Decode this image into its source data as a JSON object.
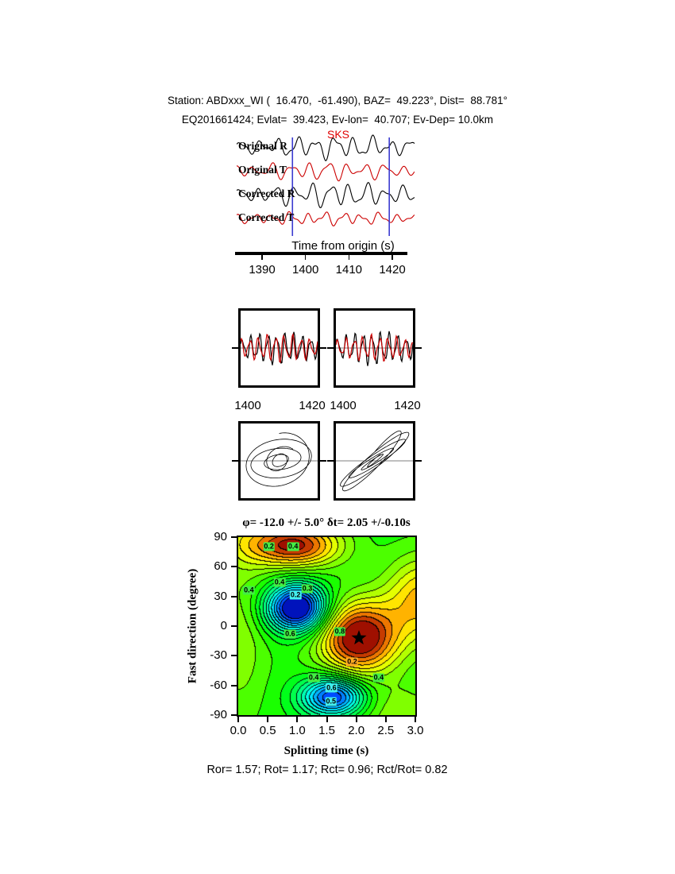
{
  "header": {
    "line1": "Station: ABDxxx_WI (  16.470,  -61.490), BAZ=  49.223°, Dist=  88.781°",
    "line2": "EQ201661424; Evlat=  39.423, Ev-lon=  40.707; Ev-Dep= 10.0km"
  },
  "footer": {
    "text": "Ror= 1.57; Rot= 1.17; Rct= 0.96; Rct/Rot= 0.82"
  },
  "chart_data": [
    {
      "type": "line",
      "name": "seismogram-traces",
      "xlabel": "Time from origin (s)",
      "xlim": [
        1384,
        1425
      ],
      "xticks": [
        1390,
        1400,
        1410,
        1420
      ],
      "phase_label": "SKS",
      "window": [
        1397,
        1419.3
      ],
      "window_color": "#3a3ad0",
      "traces": [
        {
          "label": "Original R",
          "color": "#000000",
          "components": [
            [
              10,
              9.5,
              0.0
            ],
            [
              5,
              17,
              1.3
            ],
            [
              3,
              5,
              2.1
            ]
          ],
          "env": [
            0.55,
            0.33,
            0.3
          ]
        },
        {
          "label": "Original T",
          "color": "#cc0000",
          "components": [
            [
              8,
              9.5,
              2.2
            ],
            [
              4,
              15,
              0.7
            ],
            [
              2.5,
              6,
              1.0
            ]
          ],
          "env": [
            0.5,
            0.35,
            0.3
          ]
        },
        {
          "label": "Corrected R",
          "color": "#000000",
          "components": [
            [
              11,
              9.8,
              0.4
            ],
            [
              5,
              16,
              2.0
            ],
            [
              3,
              5.5,
              0.9
            ]
          ],
          "env": [
            0.55,
            0.33,
            0.3
          ]
        },
        {
          "label": "Corrected T",
          "color": "#cc0000",
          "components": [
            [
              5.5,
              10,
              1.5
            ],
            [
              3,
              18,
              0.2
            ],
            [
              2,
              6,
              2.6
            ]
          ],
          "env": [
            0.5,
            0.4,
            0.35
          ]
        }
      ]
    },
    {
      "type": "line",
      "name": "windowed-pair-original",
      "xticks": [
        1400,
        1420
      ],
      "traces": [
        {
          "color": "#000000",
          "components": [
            [
              16,
              9,
              0.2
            ],
            [
              6,
              16,
              1.1
            ]
          ],
          "env": [
            0.5,
            0.42,
            0.25
          ]
        },
        {
          "color": "#cc0000",
          "components": [
            [
              14,
              9,
              1.05
            ],
            [
              5,
              15,
              0.3
            ]
          ],
          "env": [
            0.5,
            0.42,
            0.25
          ]
        }
      ]
    },
    {
      "type": "line",
      "name": "windowed-pair-corrected",
      "xticks": [
        1400,
        1420
      ],
      "traces": [
        {
          "color": "#000000",
          "components": [
            [
              17,
              9,
              0.2
            ],
            [
              6,
              16,
              1.0
            ]
          ],
          "env": [
            0.5,
            0.42,
            0.25
          ]
        },
        {
          "color": "#cc0000",
          "components": [
            [
              13,
              9.15,
              0.32
            ],
            [
              5,
              15.5,
              0.5
            ]
          ],
          "env": [
            0.5,
            0.42,
            0.25
          ]
        }
      ]
    },
    {
      "type": "scatter",
      "name": "particle-motion-original",
      "curve": {
        "ax": 44,
        "ay": 38,
        "phase": 1.35,
        "b0": 0.6,
        "b1": 0.4,
        "m1": 0.17,
        "c1": 0.6,
        "m2": 0.13,
        "c2": 1.9,
        "n": 540,
        "dtheta": 0.06
      }
    },
    {
      "type": "scatter",
      "name": "particle-motion-corrected",
      "curve": {
        "ax": 46,
        "ay": 40,
        "phase": 0.3,
        "b0": 0.6,
        "b1": 0.4,
        "m1": 0.15,
        "c1": 0.2,
        "m2": 0.12,
        "c2": 1.2,
        "n": 540,
        "dtheta": 0.06
      }
    },
    {
      "type": "heatmap",
      "name": "splitting-error-surface",
      "title": "φ= -12.0 +/- 5.0° δt= 2.05 +/-0.10s",
      "xlabel": "Splitting time (s)",
      "ylabel": "Fast direction (degree)",
      "xlim": [
        0,
        3
      ],
      "ylim": [
        -90,
        90
      ],
      "xticks": [
        "0.0",
        "0.5",
        "1.0",
        "1.5",
        "2.0",
        "2.5",
        "3.0"
      ],
      "yticks": [
        90,
        60,
        30,
        0,
        -30,
        -60,
        -90
      ],
      "best_solution": {
        "phi": -12.0,
        "phi_err": 5.0,
        "dt": 2.05,
        "dt_err": 0.1
      },
      "n_levels": 20,
      "base": 0.52,
      "gaussians": [
        [
          0.52,
          2.05,
          -12,
          0.48,
          26
        ],
        [
          -0.62,
          1.0,
          18,
          0.36,
          17
        ],
        [
          -0.5,
          1.62,
          -72,
          0.38,
          14
        ],
        [
          0.45,
          0.95,
          82,
          0.55,
          16
        ],
        [
          0.3,
          3.15,
          28,
          0.45,
          30
        ],
        [
          0.12,
          0.0,
          -15,
          0.35,
          55
        ],
        [
          0.12,
          2.75,
          -90,
          0.6,
          22
        ],
        [
          0.1,
          0.05,
          90,
          0.4,
          25
        ]
      ],
      "contour_labels": [
        {
          "t": "0.2",
          "x": 0.52,
          "y": 80,
          "bg": "#44ee44"
        },
        {
          "t": "0.4",
          "x": 0.93,
          "y": 80,
          "bg": "#44ee44"
        },
        {
          "t": "0.4",
          "x": 0.18,
          "y": 36,
          "bg": "#44ee44"
        },
        {
          "t": "0.4",
          "x": 0.7,
          "y": 44,
          "bg": "#44ee44"
        },
        {
          "t": "0.2",
          "x": 0.97,
          "y": 31,
          "bg": "#44eeee"
        },
        {
          "t": "0.3",
          "x": 1.17,
          "y": 38,
          "bg": "#44ee44"
        },
        {
          "t": "0.6",
          "x": 0.88,
          "y": -8,
          "bg": "#44ee44"
        },
        {
          "t": "0.8",
          "x": 1.72,
          "y": -6,
          "bg": "#44ee44"
        },
        {
          "t": "0.2",
          "x": 1.93,
          "y": -36,
          "bg": "#ffaa22"
        },
        {
          "t": "0.4",
          "x": 1.28,
          "y": -52,
          "bg": "#44ee44"
        },
        {
          "t": "0.4",
          "x": 2.38,
          "y": -52,
          "bg": "#44ee44"
        },
        {
          "t": "0.6",
          "x": 1.58,
          "y": -63,
          "bg": "#44eeee"
        },
        {
          "t": "0.5",
          "x": 1.57,
          "y": -76,
          "bg": "#44eeee"
        }
      ],
      "star_color": "#000000"
    }
  ]
}
